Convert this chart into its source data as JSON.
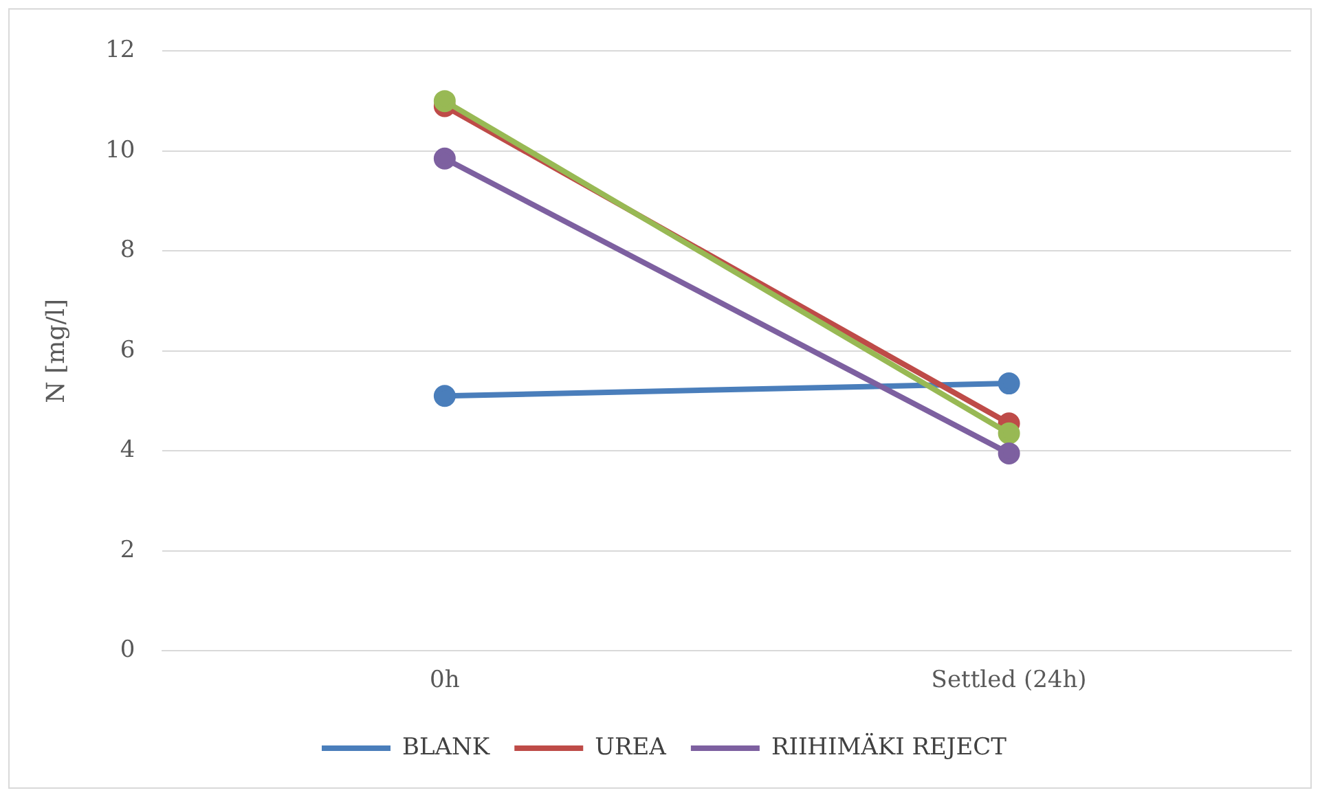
{
  "chart_data": {
    "type": "line",
    "ylabel": "N [mg/l]",
    "categories": [
      "0h",
      "Settled (24h)"
    ],
    "series": [
      {
        "name": "BLANK",
        "color": "#4a7ebb",
        "values": [
          5.1,
          5.35
        ]
      },
      {
        "name": "UREA",
        "color": "#be4b48",
        "values": [
          10.9,
          4.55
        ]
      },
      {
        "color": "#98b954",
        "values": [
          11.0,
          4.35
        ]
      },
      {
        "name": "RIIHIMÄKI REJECT",
        "color": "#7d60a0",
        "values": [
          9.85,
          3.95
        ]
      }
    ],
    "ylim": [
      0,
      12
    ],
    "yticks": [
      0,
      2,
      4,
      6,
      8,
      10,
      12
    ],
    "grid": "y",
    "legend": "bottom",
    "marker": "circle",
    "line_style": "solid"
  }
}
